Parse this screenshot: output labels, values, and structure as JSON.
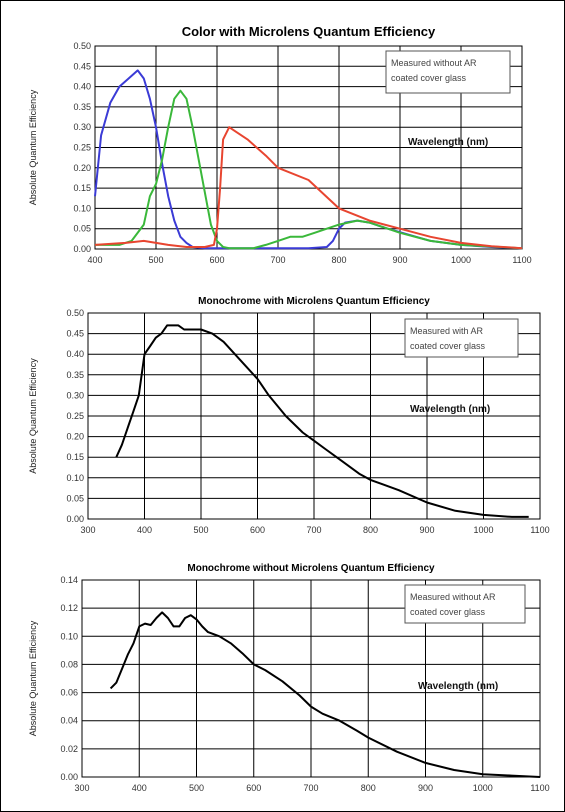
{
  "chart_data": [
    {
      "type": "line",
      "title": "Color with Microlens Quantum Efficiency",
      "xlabel": "Wavelength (nm)",
      "ylabel": "Absolute Quantum Efficiency",
      "note": [
        "Measured without AR",
        "coated cover glass"
      ],
      "xlim": [
        400,
        1100
      ],
      "ylim": [
        0,
        0.5
      ],
      "xticks": [
        "400",
        "500",
        "600",
        "700",
        "800",
        "900",
        "1000",
        "1100"
      ],
      "yticks": [
        "0.00",
        "0.05",
        "0.10",
        "0.15",
        "0.20",
        "0.25",
        "0.30",
        "0.35",
        "0.40",
        "0.45",
        "0.50"
      ],
      "series": [
        {
          "color": "#3b3bd6",
          "x": [
            400,
            410,
            425,
            440,
            455,
            470,
            480,
            490,
            500,
            510,
            520,
            530,
            540,
            550,
            560,
            580,
            600,
            620,
            650,
            700,
            750,
            780,
            790,
            800,
            810,
            830,
            850,
            880,
            950,
            1000,
            1050,
            1100
          ],
          "y": [
            0.13,
            0.28,
            0.36,
            0.4,
            0.42,
            0.44,
            0.42,
            0.37,
            0.3,
            0.21,
            0.13,
            0.07,
            0.03,
            0.015,
            0.005,
            0.002,
            0.002,
            0.002,
            0.002,
            0.002,
            0.002,
            0.005,
            0.02,
            0.05,
            0.065,
            0.07,
            0.065,
            0.05,
            0.02,
            0.01,
            0.005,
            0.002
          ]
        },
        {
          "color": "#3ab83a",
          "x": [
            400,
            420,
            440,
            460,
            480,
            490,
            500,
            510,
            520,
            530,
            540,
            550,
            560,
            570,
            580,
            590,
            600,
            610,
            620,
            640,
            660,
            680,
            700,
            720,
            740,
            760,
            780,
            800,
            830,
            850,
            880,
            900,
            950,
            1000,
            1100
          ],
          "y": [
            0.01,
            0.01,
            0.01,
            0.02,
            0.06,
            0.13,
            0.16,
            0.22,
            0.3,
            0.37,
            0.39,
            0.37,
            0.3,
            0.22,
            0.14,
            0.06,
            0.02,
            0.005,
            0.002,
            0.002,
            0.002,
            0.01,
            0.02,
            0.03,
            0.03,
            0.04,
            0.05,
            0.06,
            0.07,
            0.065,
            0.05,
            0.04,
            0.02,
            0.01,
            0.002
          ]
        },
        {
          "color": "#e84530",
          "x": [
            400,
            450,
            480,
            500,
            520,
            550,
            580,
            595,
            600,
            605,
            610,
            620,
            630,
            650,
            680,
            700,
            750,
            800,
            850,
            900,
            950,
            1000,
            1050,
            1100
          ],
          "y": [
            0.01,
            0.015,
            0.02,
            0.015,
            0.01,
            0.005,
            0.005,
            0.01,
            0.05,
            0.15,
            0.27,
            0.3,
            0.29,
            0.27,
            0.23,
            0.2,
            0.17,
            0.1,
            0.07,
            0.05,
            0.03,
            0.015,
            0.007,
            0.002
          ]
        }
      ]
    },
    {
      "type": "line",
      "title": "Monochrome with Microlens Quantum Efficiency",
      "xlabel": "Wavelength (nm)",
      "ylabel": "Absolute Quantum Efficiency",
      "note": [
        "Measured with AR",
        "coated cover glass"
      ],
      "xlim": [
        300,
        1100
      ],
      "ylim": [
        0,
        0.5
      ],
      "xticks": [
        "300",
        "400",
        "500",
        "600",
        "700",
        "800",
        "900",
        "1000",
        "1100"
      ],
      "yticks": [
        "0.00",
        "0.05",
        "0.10",
        "0.15",
        "0.20",
        "0.25",
        "0.30",
        "0.35",
        "0.40",
        "0.45",
        "0.50"
      ],
      "series": [
        {
          "color": "#000000",
          "x": [
            350,
            360,
            370,
            380,
            390,
            400,
            410,
            420,
            430,
            440,
            450,
            460,
            470,
            480,
            490,
            500,
            520,
            540,
            560,
            580,
            600,
            620,
            650,
            680,
            700,
            720,
            750,
            780,
            800,
            850,
            900,
            950,
            1000,
            1050,
            1080
          ],
          "y": [
            0.15,
            0.18,
            0.22,
            0.26,
            0.3,
            0.4,
            0.42,
            0.44,
            0.45,
            0.47,
            0.47,
            0.47,
            0.46,
            0.46,
            0.46,
            0.46,
            0.45,
            0.43,
            0.4,
            0.37,
            0.34,
            0.3,
            0.25,
            0.21,
            0.19,
            0.17,
            0.14,
            0.11,
            0.095,
            0.07,
            0.04,
            0.02,
            0.01,
            0.005,
            0.005
          ]
        }
      ]
    },
    {
      "type": "line",
      "title": "Monochrome without Microlens Quantum Efficiency",
      "xlabel": "Wavelength (nm)",
      "ylabel": "Absolute Quantum Efficiency",
      "note": [
        "Measured without AR",
        "coated cover glass"
      ],
      "xlim": [
        300,
        1100
      ],
      "ylim": [
        0,
        0.14
      ],
      "xticks": [
        "300",
        "400",
        "500",
        "600",
        "700",
        "800",
        "900",
        "1000",
        "1100"
      ],
      "yticks": [
        "0.00",
        "0.02",
        "0.04",
        "0.06",
        "0.08",
        "0.10",
        "0.12",
        "0.14"
      ],
      "series": [
        {
          "color": "#000000",
          "x": [
            350,
            360,
            370,
            380,
            390,
            400,
            410,
            420,
            430,
            440,
            450,
            460,
            470,
            480,
            490,
            500,
            510,
            520,
            540,
            560,
            580,
            600,
            620,
            650,
            680,
            700,
            720,
            750,
            780,
            800,
            850,
            900,
            950,
            1000,
            1050,
            1100
          ],
          "y": [
            0.063,
            0.067,
            0.077,
            0.087,
            0.095,
            0.107,
            0.109,
            0.108,
            0.113,
            0.117,
            0.113,
            0.107,
            0.107,
            0.113,
            0.115,
            0.112,
            0.107,
            0.103,
            0.1,
            0.095,
            0.088,
            0.08,
            0.076,
            0.068,
            0.058,
            0.05,
            0.045,
            0.04,
            0.033,
            0.028,
            0.018,
            0.01,
            0.005,
            0.002,
            0.001,
            0.0
          ]
        }
      ]
    }
  ]
}
